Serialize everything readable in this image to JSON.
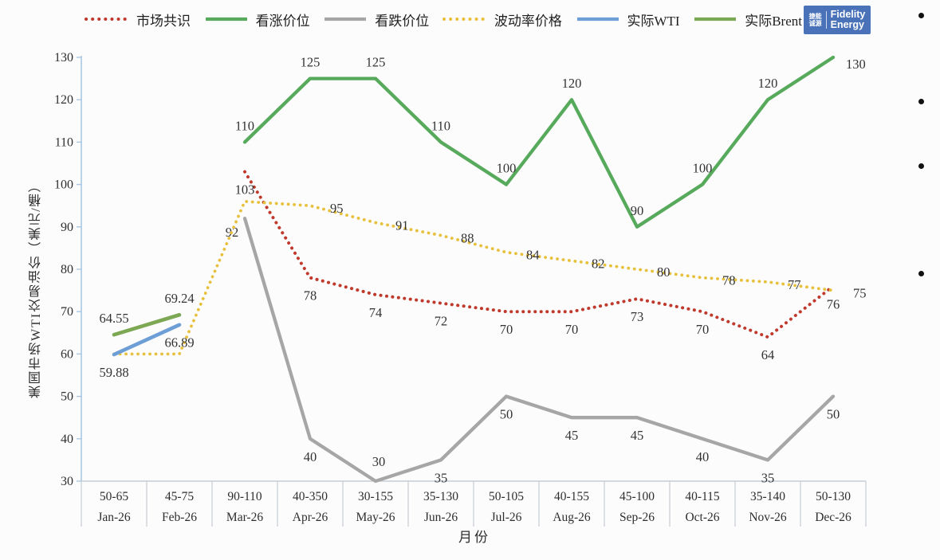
{
  "page": {
    "background": "#fcfcfc"
  },
  "legend": {
    "items": [
      {
        "label": "市场共识",
        "color": "#bf3a2d",
        "style": "dotted"
      },
      {
        "label": "看涨价位",
        "color": "#57aa5b",
        "style": "solid"
      },
      {
        "label": "看跌价位",
        "color": "#a6a6a6",
        "style": "solid"
      },
      {
        "label": "波动率价格",
        "color": "#e7c13e",
        "style": "dotted"
      },
      {
        "label": "实际WTI",
        "color": "#6e9ed6",
        "style": "solid"
      },
      {
        "label": "实际Brent",
        "color": "#7ca854",
        "style": "solid"
      }
    ]
  },
  "logo": {
    "cn_line1": "捷能",
    "cn_line2": "诚源",
    "en_line1": "Fidelity",
    "en_line2": "Energy",
    "bg_color": "#4a72b8"
  },
  "chart_data": {
    "type": "line",
    "title": "",
    "xlabel": "月份",
    "ylabel": "美国市场WTI交易油价（美元/桶）",
    "ylim": [
      30,
      130
    ],
    "ytick_step": 10,
    "grid": false,
    "legend_position": "top",
    "categories_price_range": [
      "50-65",
      "45-75",
      "90-110",
      "40-350",
      "30-155",
      "35-130",
      "50-105",
      "40-155",
      "45-100",
      "40-115",
      "35-140",
      "50-130"
    ],
    "categories_month": [
      "Jan-26",
      "Feb-26",
      "Mar-26",
      "Apr-26",
      "May-26",
      "Jun-26",
      "Jul-26",
      "Aug-26",
      "Sep-26",
      "Oct-26",
      "Nov-26",
      "Dec-26"
    ],
    "series": [
      {
        "name": "市场共识",
        "color": "#bf3a2d",
        "line": "dotted",
        "label_pos": "below",
        "values": [
          null,
          null,
          103,
          78,
          74,
          72,
          70,
          70,
          73,
          70,
          64,
          76
        ],
        "labels": [
          null,
          null,
          "103",
          "78",
          "74",
          "72",
          "70",
          "70",
          "73",
          "70",
          "64",
          "76"
        ]
      },
      {
        "name": "看涨价位",
        "color": "#57aa5b",
        "line": "solid",
        "label_pos": "above",
        "values": [
          null,
          null,
          110,
          125,
          125,
          110,
          100,
          120,
          90,
          100,
          120,
          130
        ],
        "labels": [
          null,
          null,
          "110",
          "125",
          "125",
          "110",
          "100",
          "120",
          "90",
          "100",
          "120",
          "130"
        ]
      },
      {
        "name": "看跌价位",
        "color": "#a6a6a6",
        "line": "solid",
        "label_pos": "below",
        "values": [
          null,
          null,
          92,
          40,
          30,
          35,
          50,
          45,
          45,
          40,
          35,
          50
        ],
        "labels": [
          null,
          null,
          "92",
          "40",
          "30",
          "35",
          "50",
          "45",
          "45",
          "40",
          "35",
          "50"
        ]
      },
      {
        "name": "波动率价格",
        "color": "#e7c13e",
        "line": "dotted",
        "label_pos": "right",
        "values": [
          60,
          60,
          96,
          95,
          91,
          88,
          84,
          82,
          80,
          78,
          77,
          75
        ],
        "labels": [
          null,
          null,
          null,
          "95",
          "91",
          "88",
          "84",
          "82",
          "80",
          "78",
          "77",
          "75"
        ]
      },
      {
        "name": "实际WTI",
        "color": "#6e9ed6",
        "line": "solid",
        "label_pos": "below",
        "values": [
          59.88,
          66.89,
          null,
          null,
          null,
          null,
          null,
          null,
          null,
          null,
          null,
          null
        ],
        "labels": [
          "59.88",
          "66.89",
          null,
          null,
          null,
          null,
          null,
          null,
          null,
          null,
          null,
          null
        ]
      },
      {
        "name": "实际Brent",
        "color": "#7ca854",
        "line": "solid",
        "label_pos": "above",
        "values": [
          64.55,
          69.24,
          null,
          null,
          null,
          null,
          null,
          null,
          null,
          null,
          null,
          null
        ],
        "labels": [
          "64.55",
          "69.24",
          null,
          null,
          null,
          null,
          null,
          null,
          null,
          null,
          null,
          null
        ]
      }
    ]
  },
  "side_bullets": {
    "glyph": "•",
    "count": 4
  }
}
